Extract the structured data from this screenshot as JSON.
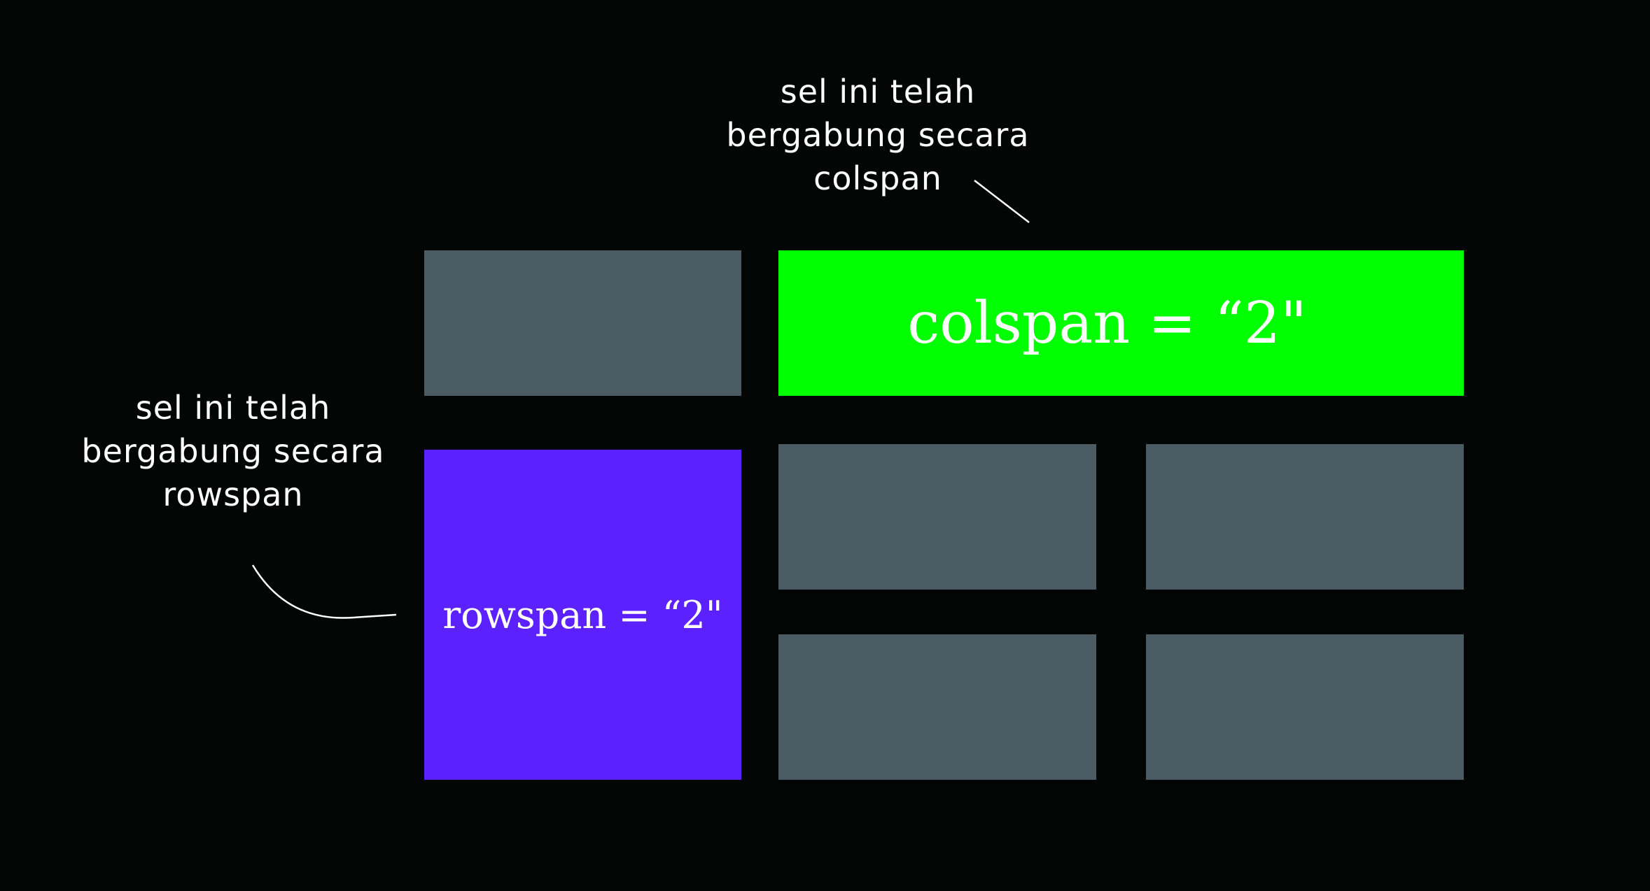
{
  "background_color": "#040605",
  "cell_color": "#4a5b64",
  "colspan_color": "#00ff00",
  "rowspan_color": "#5b22ff",
  "colspan_cell": {
    "label": "colspan = “2\""
  },
  "rowspan_cell": {
    "label": "rowspan = “2\""
  },
  "note_colspan": {
    "lines": [
      "sel ini telah",
      "bergabung secara",
      "colspan"
    ]
  },
  "note_rowspan": {
    "lines": [
      "sel ini telah",
      "bergabung secara",
      "rowspan"
    ]
  }
}
